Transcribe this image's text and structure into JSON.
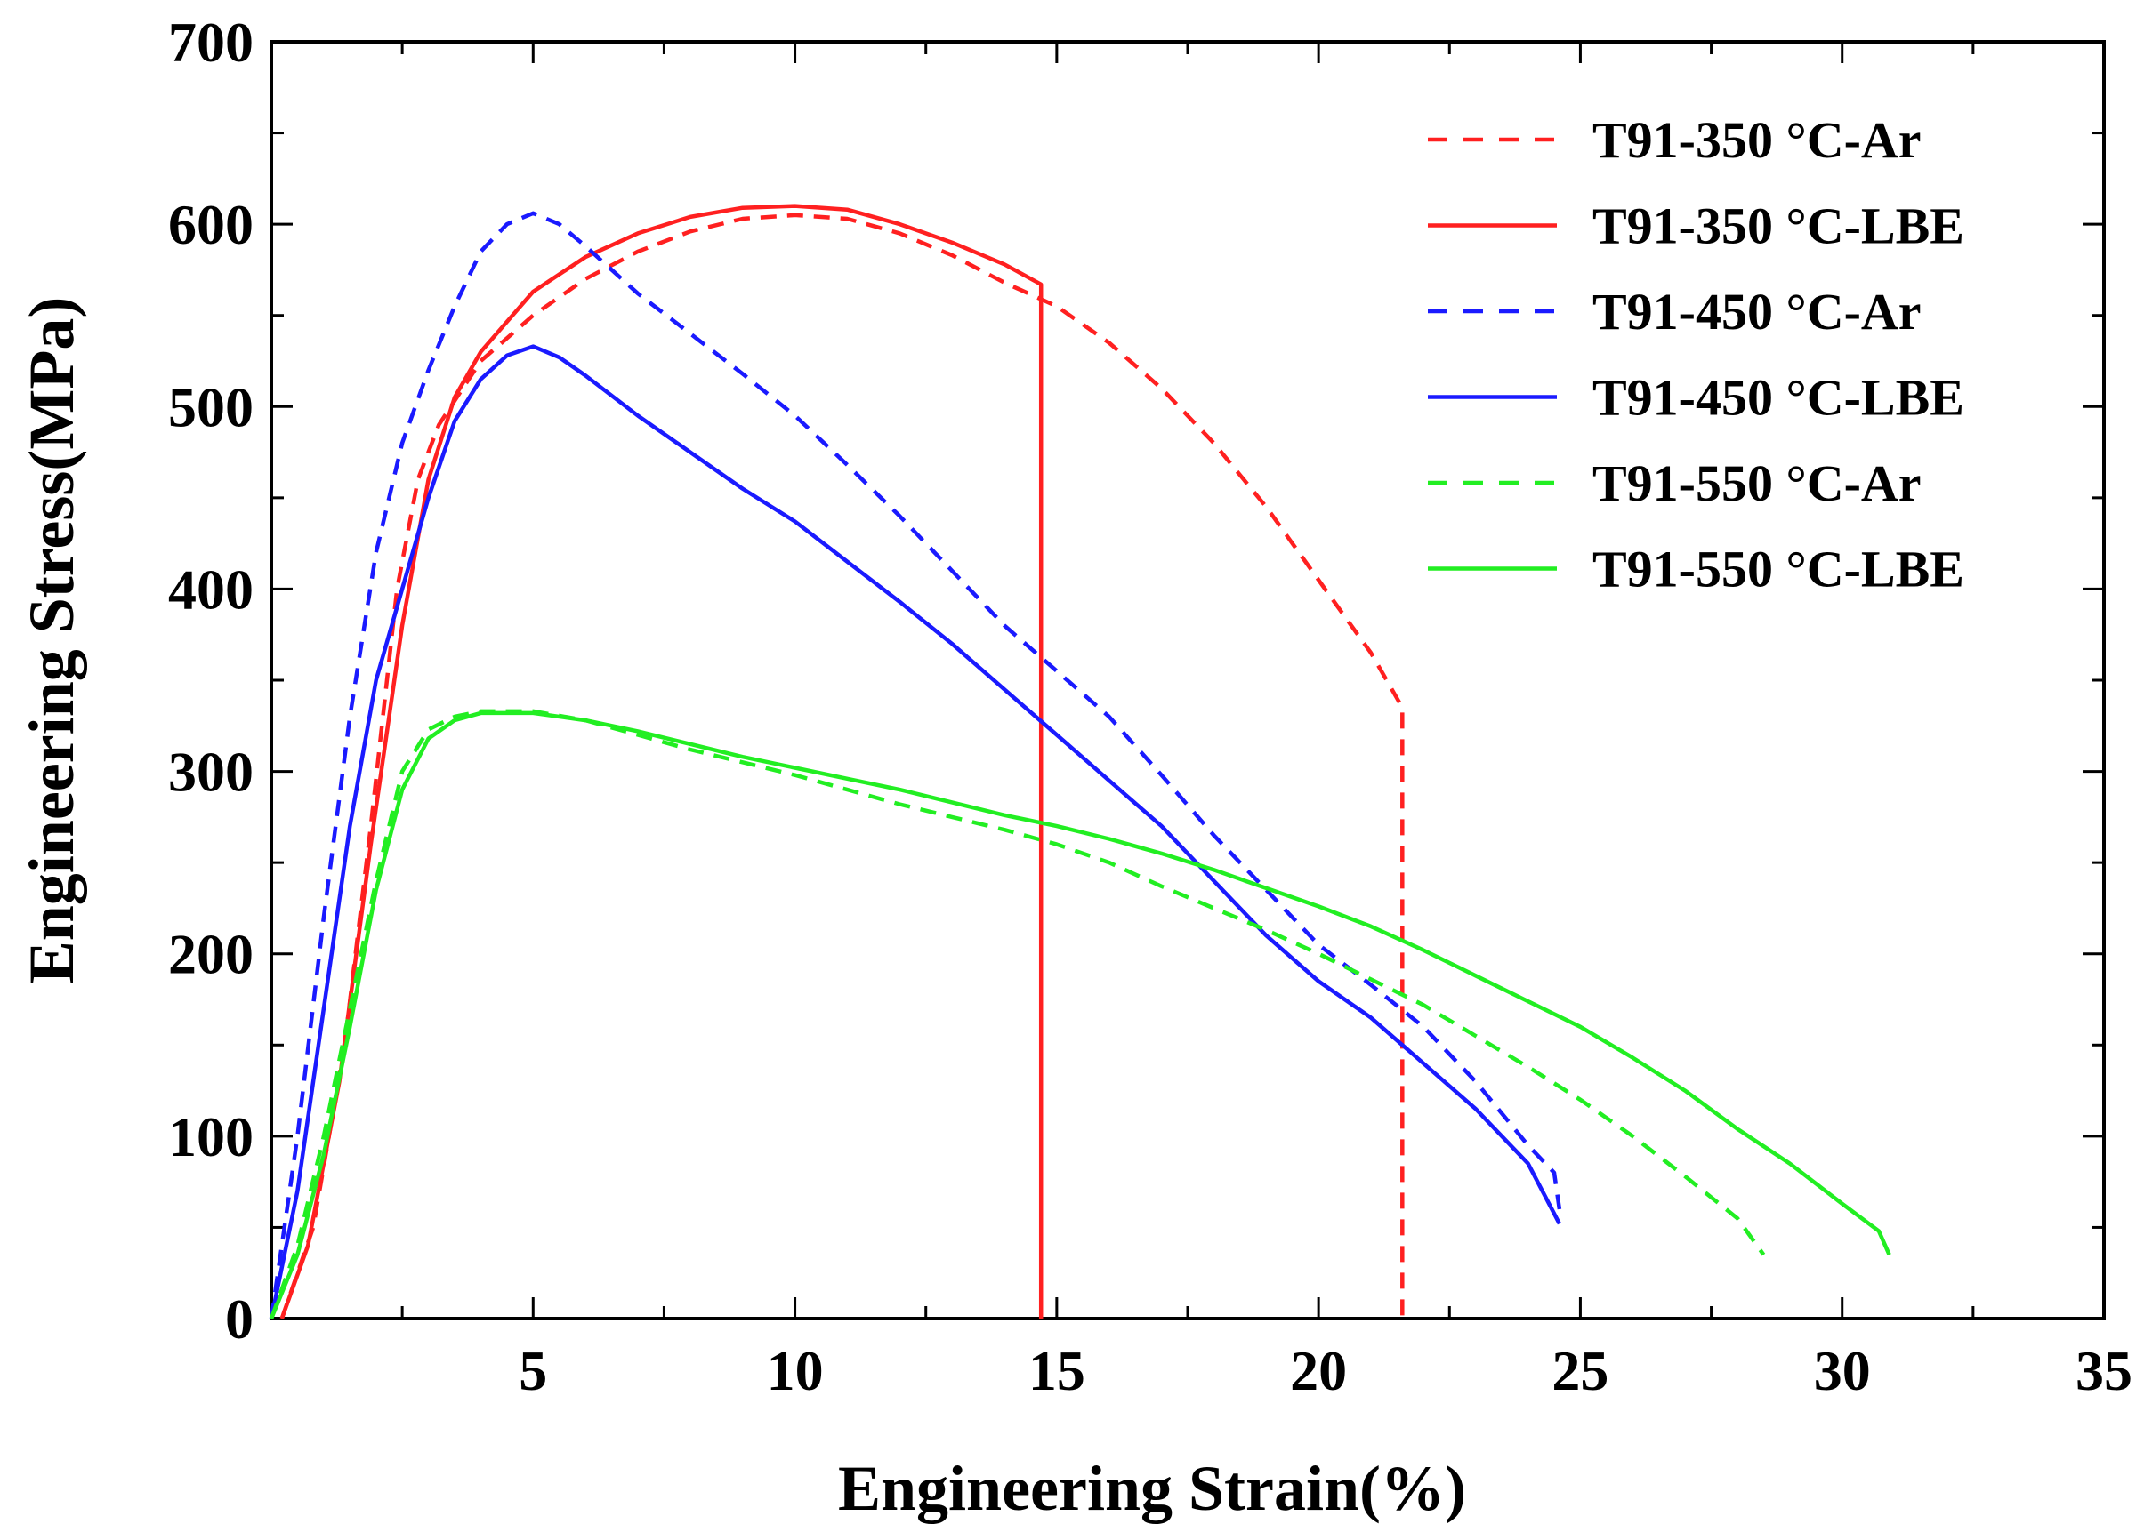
{
  "chart_data": {
    "type": "line",
    "xlabel": "Engineering Strain(%)",
    "ylabel": "Engineering Stress(MPa)",
    "xlim": [
      0,
      35
    ],
    "ylim": [
      0,
      700
    ],
    "xticks": [
      5,
      10,
      15,
      20,
      25,
      30,
      35
    ],
    "yticks": [
      0,
      100,
      200,
      300,
      400,
      500,
      600,
      700
    ],
    "xtick_labels": [
      "5",
      "10",
      "15",
      "20",
      "25",
      "30",
      "35"
    ],
    "ytick_labels": [
      "0",
      "100",
      "200",
      "300",
      "400",
      "500",
      "600",
      "700"
    ],
    "grid": false,
    "legend_position": "top-right",
    "series": [
      {
        "name": "T91-350 °C-Ar",
        "color": "#ff2020",
        "dash": "dashed",
        "points": [
          [
            0.2,
            0
          ],
          [
            0.8,
            50
          ],
          [
            1.4,
            150
          ],
          [
            1.9,
            270
          ],
          [
            2.4,
            400
          ],
          [
            2.8,
            460
          ],
          [
            3.2,
            490
          ],
          [
            4,
            525
          ],
          [
            5,
            550
          ],
          [
            6,
            570
          ],
          [
            7,
            585
          ],
          [
            8,
            596
          ],
          [
            9,
            603
          ],
          [
            10,
            605
          ],
          [
            11,
            603
          ],
          [
            12,
            595
          ],
          [
            13,
            583
          ],
          [
            14,
            568
          ],
          [
            15,
            555
          ],
          [
            16,
            535
          ],
          [
            17,
            510
          ],
          [
            18,
            480
          ],
          [
            19,
            445
          ],
          [
            20,
            405
          ],
          [
            21,
            365
          ],
          [
            21.6,
            335
          ],
          [
            21.6,
            0
          ]
        ]
      },
      {
        "name": "T91-350 °C-LBE",
        "color": "#ff2020",
        "dash": "solid",
        "points": [
          [
            0.2,
            0
          ],
          [
            0.7,
            40
          ],
          [
            1.3,
            130
          ],
          [
            1.9,
            260
          ],
          [
            2.5,
            380
          ],
          [
            3,
            460
          ],
          [
            3.5,
            505
          ],
          [
            4,
            530
          ],
          [
            5,
            563
          ],
          [
            6,
            582
          ],
          [
            7,
            595
          ],
          [
            8,
            604
          ],
          [
            9,
            609
          ],
          [
            10,
            610
          ],
          [
            11,
            608
          ],
          [
            12,
            600
          ],
          [
            13,
            590
          ],
          [
            14,
            578
          ],
          [
            14.7,
            567
          ],
          [
            14.7,
            0
          ]
        ]
      },
      {
        "name": "T91-450 °C-Ar",
        "color": "#1a1aff",
        "dash": "dashed",
        "points": [
          [
            0,
            0
          ],
          [
            0.5,
            100
          ],
          [
            1,
            220
          ],
          [
            1.5,
            330
          ],
          [
            2,
            420
          ],
          [
            2.5,
            480
          ],
          [
            3,
            520
          ],
          [
            3.5,
            555
          ],
          [
            4,
            585
          ],
          [
            4.5,
            600
          ],
          [
            5,
            606
          ],
          [
            5.5,
            600
          ],
          [
            6,
            588
          ],
          [
            7,
            562
          ],
          [
            8,
            540
          ],
          [
            9,
            518
          ],
          [
            10,
            495
          ],
          [
            11,
            468
          ],
          [
            12,
            440
          ],
          [
            13,
            410
          ],
          [
            14,
            380
          ],
          [
            15,
            355
          ],
          [
            16,
            330
          ],
          [
            17,
            298
          ],
          [
            18,
            265
          ],
          [
            19,
            235
          ],
          [
            20,
            205
          ],
          [
            21,
            183
          ],
          [
            22,
            160
          ],
          [
            23,
            130
          ],
          [
            24,
            95
          ],
          [
            24.5,
            80
          ],
          [
            24.6,
            60
          ]
        ]
      },
      {
        "name": "T91-450 °C-LBE",
        "color": "#1a1aff",
        "dash": "solid",
        "points": [
          [
            0,
            0
          ],
          [
            0.5,
            70
          ],
          [
            1,
            170
          ],
          [
            1.5,
            270
          ],
          [
            2,
            350
          ],
          [
            2.5,
            400
          ],
          [
            3,
            450
          ],
          [
            3.5,
            492
          ],
          [
            4,
            515
          ],
          [
            4.5,
            528
          ],
          [
            5,
            533
          ],
          [
            5.5,
            527
          ],
          [
            6,
            517
          ],
          [
            7,
            495
          ],
          [
            8,
            475
          ],
          [
            9,
            455
          ],
          [
            10,
            437
          ],
          [
            11,
            415
          ],
          [
            12,
            393
          ],
          [
            13,
            370
          ],
          [
            14,
            345
          ],
          [
            15,
            320
          ],
          [
            16,
            295
          ],
          [
            17,
            270
          ],
          [
            18,
            240
          ],
          [
            19,
            210
          ],
          [
            20,
            185
          ],
          [
            21,
            165
          ],
          [
            22,
            140
          ],
          [
            23,
            115
          ],
          [
            24,
            85
          ],
          [
            24.6,
            52
          ]
        ]
      },
      {
        "name": "T91-550 °C-Ar",
        "color": "#22ee22",
        "dash": "dashed",
        "points": [
          [
            0,
            0
          ],
          [
            0.5,
            40
          ],
          [
            1,
            100
          ],
          [
            1.5,
            170
          ],
          [
            2,
            240
          ],
          [
            2.5,
            300
          ],
          [
            3,
            323
          ],
          [
            3.5,
            330
          ],
          [
            4,
            333
          ],
          [
            5,
            333
          ],
          [
            6,
            328
          ],
          [
            7,
            320
          ],
          [
            8,
            312
          ],
          [
            9,
            305
          ],
          [
            10,
            298
          ],
          [
            11,
            290
          ],
          [
            12,
            282
          ],
          [
            13,
            275
          ],
          [
            14,
            268
          ],
          [
            15,
            260
          ],
          [
            16,
            250
          ],
          [
            17,
            237
          ],
          [
            18,
            225
          ],
          [
            19,
            213
          ],
          [
            20,
            200
          ],
          [
            21,
            186
          ],
          [
            22,
            172
          ],
          [
            23,
            155
          ],
          [
            24,
            138
          ],
          [
            25,
            120
          ],
          [
            26,
            100
          ],
          [
            27,
            78
          ],
          [
            28,
            55
          ],
          [
            28.5,
            35
          ]
        ]
      },
      {
        "name": "T91-550 °C-LBE",
        "color": "#22ee22",
        "dash": "solid",
        "points": [
          [
            0,
            0
          ],
          [
            0.5,
            35
          ],
          [
            1,
            90
          ],
          [
            1.5,
            160
          ],
          [
            2,
            235
          ],
          [
            2.5,
            290
          ],
          [
            3,
            318
          ],
          [
            3.5,
            328
          ],
          [
            4,
            332
          ],
          [
            5,
            332
          ],
          [
            6,
            328
          ],
          [
            7,
            322
          ],
          [
            8,
            315
          ],
          [
            9,
            308
          ],
          [
            10,
            302
          ],
          [
            11,
            296
          ],
          [
            12,
            290
          ],
          [
            13,
            283
          ],
          [
            14,
            276
          ],
          [
            15,
            270
          ],
          [
            16,
            263
          ],
          [
            17,
            255
          ],
          [
            18,
            246
          ],
          [
            19,
            236
          ],
          [
            20,
            226
          ],
          [
            21,
            215
          ],
          [
            22,
            202
          ],
          [
            23,
            188
          ],
          [
            24,
            174
          ],
          [
            25,
            160
          ],
          [
            26,
            143
          ],
          [
            27,
            125
          ],
          [
            28,
            104
          ],
          [
            29,
            85
          ],
          [
            30,
            63
          ],
          [
            30.7,
            48
          ],
          [
            30.9,
            35
          ]
        ]
      }
    ]
  }
}
